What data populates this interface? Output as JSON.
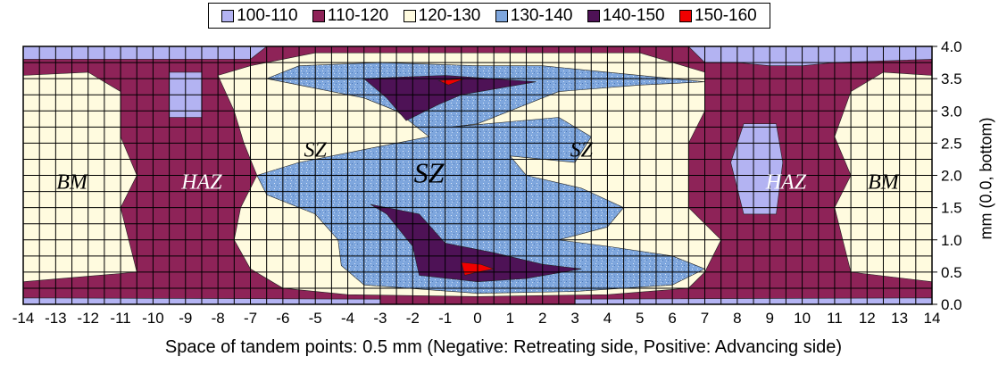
{
  "chart_data": {
    "type": "heatmap",
    "title": "",
    "xlabel": "Space of tandem points: 0.5 mm (Negative: Retreating side, Positive: Advancing side)",
    "ylabel": "mm (0.0, bottom)",
    "xlim": [
      -14,
      14
    ],
    "ylim": [
      0.0,
      4.0
    ],
    "x_ticks": [
      "-14",
      "-13",
      "-12",
      "-11",
      "-10",
      "-9",
      "-8",
      "-7",
      "-6",
      "-5",
      "-4",
      "-3",
      "-2",
      "-1",
      "0",
      "1",
      "2",
      "3",
      "4",
      "5",
      "6",
      "7",
      "8",
      "9",
      "10",
      "11",
      "12",
      "13",
      "14"
    ],
    "y_ticks": [
      "0.0",
      "0.5",
      "1.0",
      "1.5",
      "2.0",
      "2.5",
      "3.0",
      "3.5",
      "4.0"
    ],
    "grid": true,
    "legend_position": "top-center",
    "legend": [
      {
        "label": "100-110",
        "color": "#b3b3f2"
      },
      {
        "label": "110-120",
        "color": "#8e2358"
      },
      {
        "label": "120-130",
        "color": "#fffbdf"
      },
      {
        "label": "130-140",
        "color": "#7ea6dd"
      },
      {
        "label": "140-150",
        "color": "#4e1256"
      },
      {
        "label": "150-160",
        "color": "#f00000"
      }
    ],
    "annotations": [
      {
        "text": "BM",
        "x": -12.5,
        "y": 1.9
      },
      {
        "text": "HAZ",
        "x": -8.5,
        "y": 1.9
      },
      {
        "text": "SZ",
        "x": -5.0,
        "y": 2.4
      },
      {
        "text": "SZ",
        "x": -1.5,
        "y": 2.0
      },
      {
        "text": "SZ",
        "x": 3.2,
        "y": 2.4
      },
      {
        "text": "HAZ",
        "x": 9.5,
        "y": 1.9
      },
      {
        "text": "BM",
        "x": 12.5,
        "y": 1.9
      }
    ]
  }
}
